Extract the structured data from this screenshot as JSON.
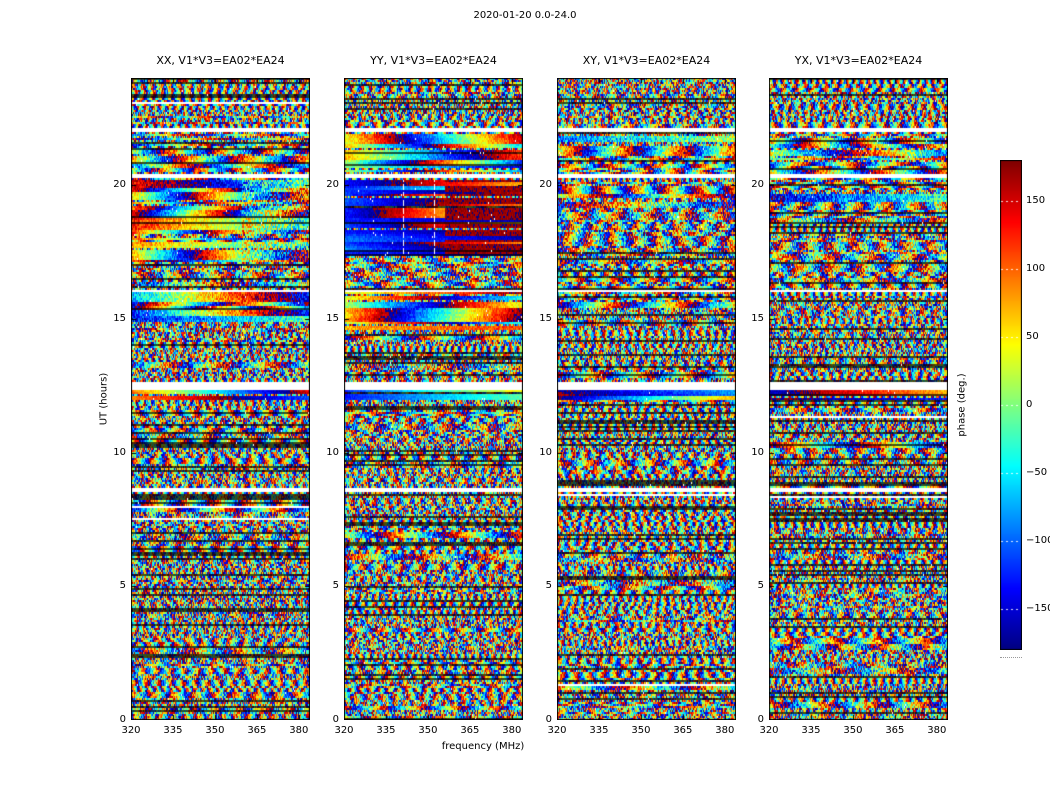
{
  "chart_data": {
    "type": "heatmap",
    "suptitle": "2020-01-20 0.0-24.0",
    "xlabel": "frequency (MHz)",
    "ylabel": "UT (hours)",
    "xlim": [
      320,
      384
    ],
    "ylim": [
      0,
      24
    ],
    "xticks": [
      320,
      335,
      350,
      365,
      380
    ],
    "yticks": [
      0,
      5,
      10,
      15,
      20
    ],
    "grid": false,
    "colormap": "jet",
    "colorbar_label": "phase (deg.)",
    "value_range": [
      -180,
      180
    ],
    "colorbar_ticks": [
      150,
      100,
      50,
      0,
      -50,
      -100,
      -150
    ],
    "colorbar_tick_labels": [
      "150",
      "100",
      "50",
      "0",
      "−50",
      "−100",
      "−150"
    ],
    "panels": [
      {
        "title": "XX, V1*V3=EA02*EA24",
        "regions": [
          {
            "t0": 20.45,
            "t1": 21.9,
            "style": "mixed"
          },
          {
            "t0": 17.0,
            "t1": 20.2,
            "style": "warm"
          },
          {
            "t0": 16.12,
            "t1": 17.0,
            "style": "mottled"
          },
          {
            "t0": 14.9,
            "t1": 16.0,
            "style": "cool"
          },
          {
            "t0": 11.95,
            "t1": 12.3,
            "style": "warm-strong"
          }
        ]
      },
      {
        "title": "YY, V1*V3=EA02*EA24",
        "regions": [
          {
            "t0": 20.45,
            "t1": 21.9,
            "style": "yellowgreen"
          },
          {
            "t0": 17.35,
            "t1": 20.2,
            "style": "blue-red"
          },
          {
            "t0": 16.12,
            "t1": 17.35,
            "style": "mottled"
          },
          {
            "t0": 14.6,
            "t1": 16.0,
            "style": "yellowgreen"
          },
          {
            "t0": 11.95,
            "t1": 12.3,
            "style": "blue"
          }
        ]
      },
      {
        "title": "XY, V1*V3=EA02*EA24",
        "regions": [
          {
            "t0": 19.4,
            "t1": 21.9,
            "style": "mixed"
          },
          {
            "t0": 17.0,
            "t1": 19.4,
            "style": "mottled"
          },
          {
            "t0": 11.95,
            "t1": 12.3,
            "style": "dark"
          }
        ]
      },
      {
        "title": "YX, V1*V3=EA02*EA24",
        "regions": [
          {
            "t0": 19.4,
            "t1": 21.9,
            "style": "mixed"
          },
          {
            "t0": 16.4,
            "t1": 19.4,
            "style": "mottled"
          },
          {
            "t0": 11.95,
            "t1": 12.3,
            "style": "dark"
          }
        ]
      }
    ],
    "flagged_times": [
      [
        21.95,
        22.15
      ],
      [
        20.25,
        20.42
      ],
      [
        16.0,
        16.1
      ],
      [
        12.32,
        12.6
      ],
      [
        8.55,
        8.68
      ]
    ],
    "description": "Visibility phase (deg., jet colormap, wrapped to ±180) versus frequency (MHz) and time (UT hours) for four polarization products XX, YY, XY, YX of baseline V1*V3=EA02*EA24; mostly noise-like fringes with coherent phase structure between UT ~12 and ~22 and white flagged time ranges."
  }
}
